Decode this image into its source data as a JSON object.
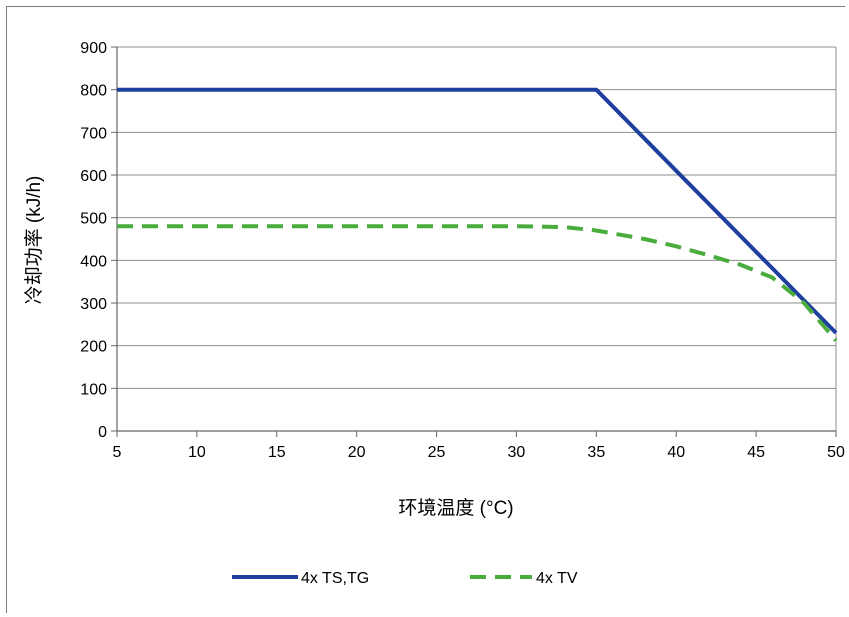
{
  "chart_data": {
    "type": "line",
    "title": "",
    "xlabel": "环境温度 (°C)",
    "ylabel": "冷却功率 (kJ/h)",
    "xlim": [
      5,
      50
    ],
    "ylim": [
      0,
      900
    ],
    "x_ticks": [
      5,
      10,
      15,
      20,
      25,
      30,
      35,
      40,
      45,
      50
    ],
    "y_ticks": [
      0,
      100,
      200,
      300,
      400,
      500,
      600,
      700,
      800,
      900
    ],
    "grid": "horizontal",
    "legend": "bottom",
    "series": [
      {
        "name": "4x TS,TG",
        "color": "#1f3f9f",
        "style": "solid",
        "x": [
          5,
          35,
          50
        ],
        "y": [
          800,
          800,
          230
        ]
      },
      {
        "name": "4x TV",
        "color": "#4aac3c",
        "style": "dashed",
        "x": [
          5,
          15,
          25,
          30,
          33,
          35,
          38,
          40,
          42,
          44,
          46,
          48,
          50
        ],
        "y": [
          480,
          480,
          480,
          480,
          478,
          470,
          450,
          433,
          412,
          390,
          360,
          300,
          212
        ]
      }
    ]
  }
}
